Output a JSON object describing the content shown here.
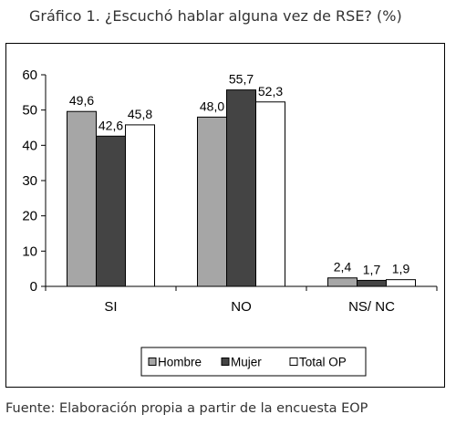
{
  "title": "Gráfico 1. ¿Escuchó hablar alguna vez de RSE? (%)",
  "source": "Fuente: Elaboración propia a partir de la encuesta EOP",
  "chart_data": {
    "type": "bar",
    "title": "Gráfico 1. ¿Escuchó hablar alguna vez de RSE? (%)",
    "xlabel": "",
    "ylabel": "",
    "categories": [
      "SI",
      "NO",
      "NS/ NC"
    ],
    "series": [
      {
        "name": "Hombre",
        "values": [
          49.6,
          48.0,
          2.4
        ],
        "labels": [
          "49,6",
          "48,0",
          "2,4"
        ],
        "color": "#a6a6a6"
      },
      {
        "name": "Mujer",
        "values": [
          42.6,
          55.7,
          1.7
        ],
        "labels": [
          "42,6",
          "55,7",
          "1,7"
        ],
        "color": "#444444"
      },
      {
        "name": "Total OP",
        "values": [
          45.8,
          52.3,
          1.9
        ],
        "labels": [
          "45,8",
          "52,3",
          "1,9"
        ],
        "color": "#ffffff"
      }
    ],
    "ylim": [
      0,
      60
    ],
    "yticks": [
      0,
      10,
      20,
      30,
      40,
      50,
      60
    ],
    "grid": false,
    "legend_position": "bottom"
  }
}
